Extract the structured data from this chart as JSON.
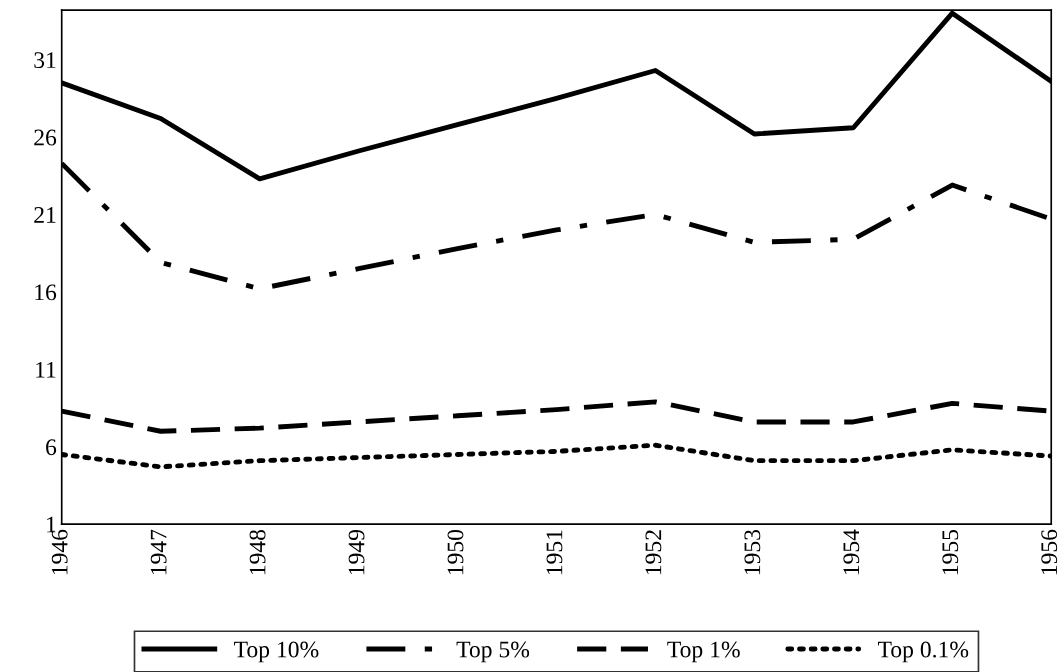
{
  "chart_data": {
    "type": "line",
    "x": [
      1946,
      1947,
      1948,
      1949,
      1950,
      1951,
      1952,
      1953,
      1954,
      1955,
      1956
    ],
    "series": [
      {
        "name": "Top 10%",
        "color": "#000000",
        "line_style": "solid",
        "values": [
          29.5,
          27.2,
          23.3,
          25.1,
          26.8,
          28.5,
          30.3,
          26.2,
          26.6,
          34.0,
          29.6
        ]
      },
      {
        "name": "Top 5%",
        "color": "#000000",
        "line_style": "dashdot",
        "values": [
          24.3,
          17.9,
          16.2,
          17.5,
          18.8,
          20.0,
          21.0,
          19.2,
          19.4,
          22.9,
          20.7
        ]
      },
      {
        "name": "Top 1%",
        "color": "#000000",
        "line_style": "dashed",
        "values": [
          8.3,
          7.0,
          7.2,
          7.6,
          8.0,
          8.4,
          8.9,
          7.6,
          7.6,
          8.8,
          8.3
        ]
      },
      {
        "name": "Top 0.1%",
        "color": "#000000",
        "line_style": "dotted",
        "values": [
          5.5,
          4.7,
          5.1,
          5.3,
          5.5,
          5.7,
          6.1,
          5.1,
          5.1,
          5.8,
          5.4
        ]
      }
    ],
    "xlim": [
      1946,
      1956
    ],
    "xticks": [
      1946,
      1947,
      1948,
      1949,
      1950,
      1951,
      1952,
      1953,
      1954,
      1955,
      1956
    ],
    "ylim": [
      1,
      34.2
    ],
    "yticks": [
      1,
      6,
      11,
      16,
      21,
      26,
      31
    ],
    "grid": false,
    "legend": "bottom",
    "marker": "none"
  }
}
